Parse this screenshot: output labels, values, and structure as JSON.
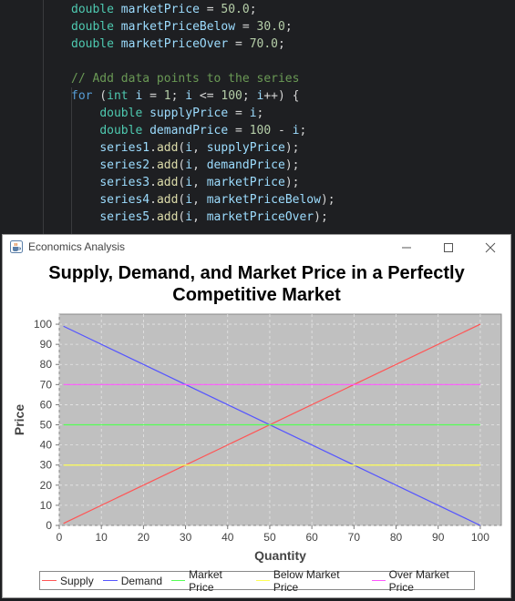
{
  "window": {
    "title": "Economics Analysis",
    "app_icon": "java-coffee-cup-icon"
  },
  "code": {
    "lines": [
      [
        [
          "ty",
          "double"
        ],
        [
          "op",
          " "
        ],
        [
          "var",
          "marketPrice"
        ],
        [
          "op",
          " = "
        ],
        [
          "num",
          "50.0"
        ],
        [
          "op",
          ";"
        ]
      ],
      [
        [
          "ty",
          "double"
        ],
        [
          "op",
          " "
        ],
        [
          "var",
          "marketPriceBelow"
        ],
        [
          "op",
          " = "
        ],
        [
          "num",
          "30.0"
        ],
        [
          "op",
          ";"
        ]
      ],
      [
        [
          "ty",
          "double"
        ],
        [
          "op",
          " "
        ],
        [
          "var",
          "marketPriceOver"
        ],
        [
          "op",
          " = "
        ],
        [
          "num",
          "70.0"
        ],
        [
          "op",
          ";"
        ]
      ],
      [],
      [
        [
          "cm",
          "// Add data points to the series"
        ]
      ],
      [
        [
          "kw",
          "for"
        ],
        [
          "op",
          " ("
        ],
        [
          "ty",
          "int"
        ],
        [
          "op",
          " "
        ],
        [
          "var",
          "i"
        ],
        [
          "op",
          " = "
        ],
        [
          "num",
          "1"
        ],
        [
          "op",
          "; "
        ],
        [
          "var",
          "i"
        ],
        [
          "op",
          " <= "
        ],
        [
          "num",
          "100"
        ],
        [
          "op",
          "; "
        ],
        [
          "var",
          "i"
        ],
        [
          "op",
          "++) {"
        ]
      ],
      [
        [
          "op",
          "    "
        ],
        [
          "ty",
          "double"
        ],
        [
          "op",
          " "
        ],
        [
          "var",
          "supplyPrice"
        ],
        [
          "op",
          " = "
        ],
        [
          "var",
          "i"
        ],
        [
          "op",
          ";"
        ]
      ],
      [
        [
          "op",
          "    "
        ],
        [
          "ty",
          "double"
        ],
        [
          "op",
          " "
        ],
        [
          "var",
          "demandPrice"
        ],
        [
          "op",
          " = "
        ],
        [
          "num",
          "100"
        ],
        [
          "op",
          " - "
        ],
        [
          "var",
          "i"
        ],
        [
          "op",
          ";"
        ]
      ],
      [
        [
          "op",
          "    "
        ],
        [
          "var",
          "series1"
        ],
        [
          "op",
          "."
        ],
        [
          "fn",
          "add"
        ],
        [
          "op",
          "("
        ],
        [
          "var",
          "i"
        ],
        [
          "op",
          ", "
        ],
        [
          "var",
          "supplyPrice"
        ],
        [
          "op",
          ");"
        ]
      ],
      [
        [
          "op",
          "    "
        ],
        [
          "var",
          "series2"
        ],
        [
          "op",
          "."
        ],
        [
          "fn",
          "add"
        ],
        [
          "op",
          "("
        ],
        [
          "var",
          "i"
        ],
        [
          "op",
          ", "
        ],
        [
          "var",
          "demandPrice"
        ],
        [
          "op",
          ");"
        ]
      ],
      [
        [
          "op",
          "    "
        ],
        [
          "var",
          "series3"
        ],
        [
          "op",
          "."
        ],
        [
          "fn",
          "add"
        ],
        [
          "op",
          "("
        ],
        [
          "var",
          "i"
        ],
        [
          "op",
          ", "
        ],
        [
          "var",
          "marketPrice"
        ],
        [
          "op",
          ");"
        ]
      ],
      [
        [
          "op",
          "    "
        ],
        [
          "var",
          "series4"
        ],
        [
          "op",
          "."
        ],
        [
          "fn",
          "add"
        ],
        [
          "op",
          "("
        ],
        [
          "var",
          "i"
        ],
        [
          "op",
          ", "
        ],
        [
          "var",
          "marketPriceBelow"
        ],
        [
          "op",
          ");"
        ]
      ],
      [
        [
          "op",
          "    "
        ],
        [
          "var",
          "series5"
        ],
        [
          "op",
          "."
        ],
        [
          "fn",
          "add"
        ],
        [
          "op",
          "("
        ],
        [
          "var",
          "i"
        ],
        [
          "op",
          ", "
        ],
        [
          "var",
          "marketPriceOver"
        ],
        [
          "op",
          ");"
        ]
      ]
    ]
  },
  "chart_data": {
    "type": "line",
    "title": "Supply, Demand, and Market Price in a Perfectly Competitive Market",
    "xlabel": "Quantity",
    "ylabel": "Price",
    "xlim": [
      0,
      105
    ],
    "ylim": [
      0,
      105
    ],
    "xticks": [
      0,
      10,
      20,
      30,
      40,
      50,
      60,
      70,
      80,
      90,
      100
    ],
    "yticks": [
      0,
      10,
      20,
      30,
      40,
      50,
      60,
      70,
      80,
      90,
      100
    ],
    "grid": true,
    "background": "#c0c0c0",
    "legend_position": "bottom",
    "series": [
      {
        "name": "Supply",
        "color": "#ff5555",
        "points": [
          [
            1,
            1
          ],
          [
            100,
            100
          ]
        ]
      },
      {
        "name": "Demand",
        "color": "#5555ff",
        "points": [
          [
            1,
            99
          ],
          [
            100,
            0
          ]
        ]
      },
      {
        "name": "Market Price",
        "color": "#55ff55",
        "points": [
          [
            1,
            50
          ],
          [
            100,
            50
          ]
        ]
      },
      {
        "name": "Below Market Price",
        "color": "#ffff55",
        "points": [
          [
            1,
            30
          ],
          [
            100,
            30
          ]
        ]
      },
      {
        "name": "Over Market Price",
        "color": "#ff55ff",
        "points": [
          [
            1,
            70
          ],
          [
            100,
            70
          ]
        ]
      }
    ]
  }
}
